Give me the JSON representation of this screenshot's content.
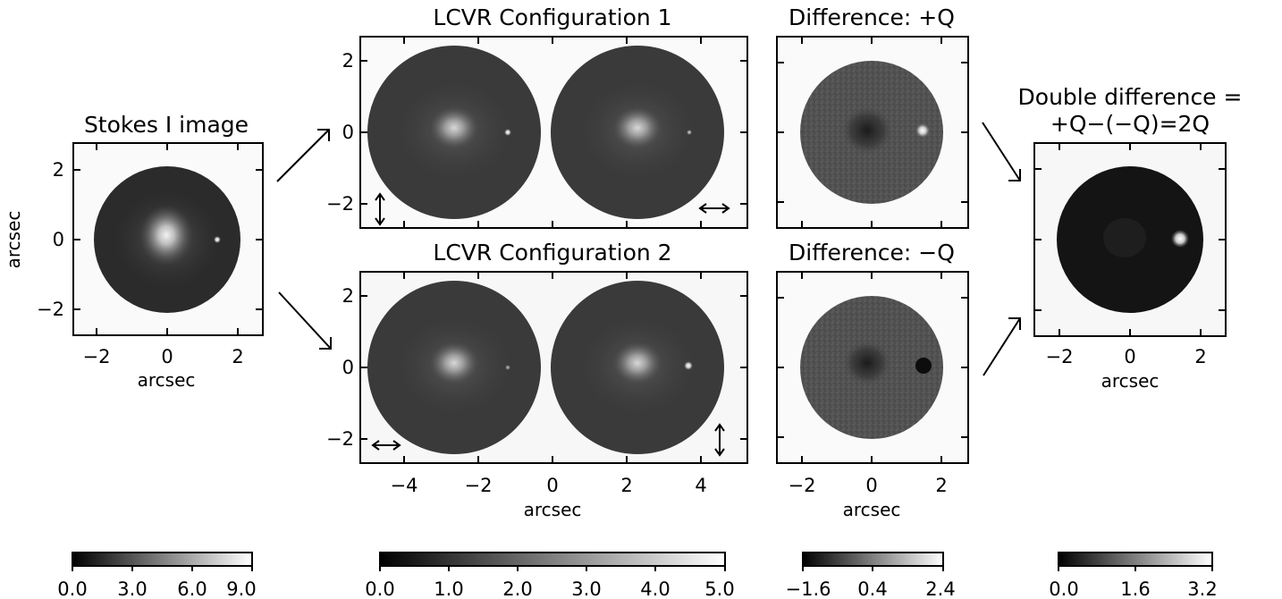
{
  "panels": {
    "stokes": {
      "title": "Stokes I image",
      "xlabel": "arcsec",
      "ylabel": "arcsec",
      "xticks": [
        "−2",
        "0",
        "2"
      ],
      "yticks": [
        "2",
        "0",
        "−2"
      ]
    },
    "config1": {
      "title": "LCVR Configuration 1",
      "yticks": [
        "2",
        "0",
        "−2"
      ],
      "arrows": [
        "vertical",
        "horizontal"
      ]
    },
    "config2": {
      "title": "LCVR Configuration 2",
      "xlabel": "arcsec",
      "xticks": [
        "−4",
        "−2",
        "0",
        "2",
        "4"
      ],
      "yticks": [
        "2",
        "0",
        "−2"
      ],
      "arrows": [
        "horizontal",
        "vertical"
      ]
    },
    "diff_plus": {
      "title": "Difference: +Q"
    },
    "diff_minus": {
      "title": "Difference: −Q",
      "xlabel": "arcsec",
      "xticks": [
        "−2",
        "0",
        "2"
      ]
    },
    "double": {
      "title_line1": "Double difference =",
      "title_line2": "+Q−(−Q)=2Q",
      "xlabel": "arcsec",
      "xticks": [
        "−2",
        "0",
        "2"
      ]
    }
  },
  "colorbars": [
    {
      "min": 0.0,
      "max": 9.0,
      "ticks": [
        "0.0",
        "3.0",
        "6.0",
        "9.0"
      ]
    },
    {
      "min": 0.0,
      "max": 5.0,
      "ticks": [
        "0.0",
        "1.0",
        "2.0",
        "3.0",
        "4.0",
        "5.0"
      ]
    },
    {
      "min": -1.6,
      "max": 2.4,
      "ticks": [
        "−1.6",
        "0.4",
        "2.4"
      ]
    },
    {
      "min": 0.0,
      "max": 3.2,
      "ticks": [
        "0.0",
        "1.6",
        "3.2"
      ]
    }
  ],
  "colors": {
    "disk_stokes": "#2b2b2b",
    "disk_config": "#3a3a3a",
    "disk_diff": "#525252",
    "disk_double": "#141414",
    "frame_fill": "#f7f7f7"
  }
}
